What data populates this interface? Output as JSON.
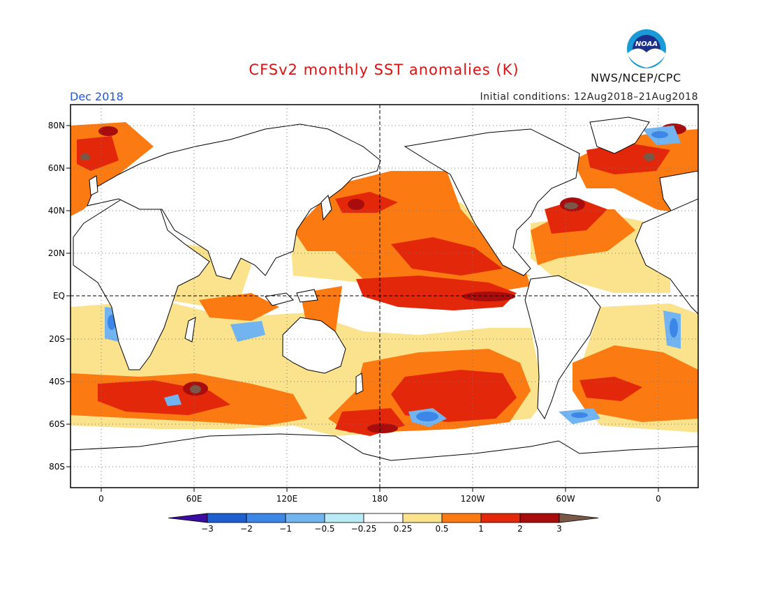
{
  "header": {
    "title": "CFSv2 monthly SST anomalies (K)",
    "month": "Dec 2018",
    "initial_conditions": "Initial conditions: 12Aug2018–21Aug2018",
    "agency": "NWS/NCEP/CPC",
    "logo_text": "NOAA",
    "logo_icon": "noaa-seagull-icon"
  },
  "map": {
    "projection": "equirectangular",
    "lon_range": [
      -20,
      380
    ],
    "lat_range": [
      -90,
      90
    ],
    "lat_labels": [
      "80N",
      "60N",
      "40N",
      "20N",
      "EQ",
      "20S",
      "40S",
      "60S",
      "80S"
    ],
    "lon_labels": [
      "0",
      "60E",
      "120E",
      "180",
      "120W",
      "60W",
      "0"
    ],
    "grid": "dotted",
    "reference_lines": [
      "equator",
      "dateline"
    ]
  },
  "legend": {
    "labels": [
      "−3",
      "−2",
      "−1",
      "−0.5",
      "−0.25",
      "0.25",
      "0.5",
      "1",
      "2",
      "3"
    ],
    "colors": [
      "#3a0ca0",
      "#1d5fd0",
      "#3b86e6",
      "#72b4ef",
      "#b8ebf5",
      "#ffffff",
      "#fbe28c",
      "#fb7a12",
      "#e3270a",
      "#a90c0c",
      "#7a5848"
    ]
  }
}
